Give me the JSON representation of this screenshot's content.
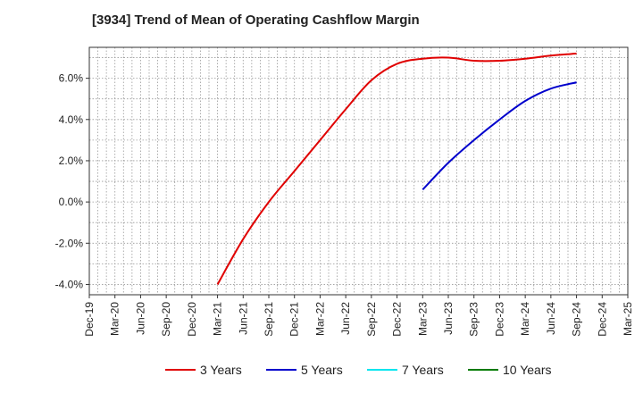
{
  "chart_data": {
    "type": "line",
    "title": "[3934]  Trend of Mean of Operating Cashflow Margin",
    "xlabel": "",
    "ylabel": "",
    "x_ticks": [
      "Dec-19",
      "Mar-20",
      "Jun-20",
      "Sep-20",
      "Dec-20",
      "Mar-21",
      "Jun-21",
      "Sep-21",
      "Dec-21",
      "Mar-22",
      "Jun-22",
      "Sep-22",
      "Dec-22",
      "Mar-23",
      "Jun-23",
      "Sep-23",
      "Dec-23",
      "Mar-24",
      "Jun-24",
      "Sep-24",
      "Dec-24",
      "Mar-25"
    ],
    "y_ticks": [
      "-4.0%",
      "-2.0%",
      "0.0%",
      "2.0%",
      "4.0%",
      "6.0%"
    ],
    "ylim": [
      -4.5,
      7.5
    ],
    "grid": true,
    "legend_position": "bottom",
    "series": [
      {
        "name": "3 Years",
        "color": "#e00000",
        "points": [
          [
            "Mar-21",
            -4.0
          ],
          [
            "Jun-21",
            -1.8
          ],
          [
            "Sep-21",
            0.0
          ],
          [
            "Dec-21",
            1.5
          ],
          [
            "Mar-22",
            3.0
          ],
          [
            "Jun-22",
            4.5
          ],
          [
            "Sep-22",
            5.9
          ],
          [
            "Dec-22",
            6.7
          ],
          [
            "Mar-23",
            6.95
          ],
          [
            "Jun-23",
            7.0
          ],
          [
            "Sep-23",
            6.85
          ],
          [
            "Dec-23",
            6.85
          ],
          [
            "Mar-24",
            6.95
          ],
          [
            "Jun-24",
            7.1
          ],
          [
            "Sep-24",
            7.2
          ]
        ]
      },
      {
        "name": "5 Years",
        "color": "#0000cc",
        "points": [
          [
            "Mar-23",
            0.6
          ],
          [
            "Jun-23",
            1.9
          ],
          [
            "Sep-23",
            3.0
          ],
          [
            "Dec-23",
            4.0
          ],
          [
            "Mar-24",
            4.9
          ],
          [
            "Jun-24",
            5.5
          ],
          [
            "Sep-24",
            5.8
          ]
        ]
      },
      {
        "name": "7 Years",
        "color": "#00e5ee",
        "points": []
      },
      {
        "name": "10 Years",
        "color": "#007a00",
        "points": []
      }
    ]
  }
}
